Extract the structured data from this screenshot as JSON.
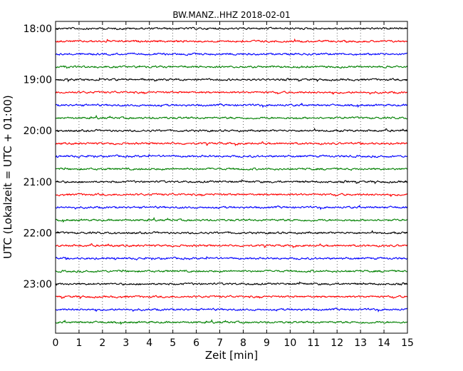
{
  "chart_data": {
    "type": "line",
    "title": "BW.MANZ..HHZ 2018-02-01",
    "xlabel": "Zeit  [min]",
    "ylabel": "UTC (Lokalzeit = UTC + 01:00)",
    "xlim": [
      0,
      15
    ],
    "x_ticks": [
      "0",
      "1",
      "2",
      "3",
      "4",
      "5",
      "6",
      "7",
      "8",
      "9",
      "10",
      "11",
      "12",
      "13",
      "14",
      "15"
    ],
    "y_ticks": [
      "18:00",
      "19:00",
      "20:00",
      "21:00",
      "22:00",
      "23:00"
    ],
    "grid": "vertical dotted",
    "trace_colors": [
      "#000000",
      "#ff0000",
      "#0000ff",
      "#008000"
    ],
    "traces": [
      {
        "start": "18:00",
        "color": "#000000"
      },
      {
        "start": "18:15",
        "color": "#ff0000"
      },
      {
        "start": "18:30",
        "color": "#0000ff"
      },
      {
        "start": "18:45",
        "color": "#008000"
      },
      {
        "start": "19:00",
        "color": "#000000"
      },
      {
        "start": "19:15",
        "color": "#ff0000"
      },
      {
        "start": "19:30",
        "color": "#0000ff"
      },
      {
        "start": "19:45",
        "color": "#008000"
      },
      {
        "start": "20:00",
        "color": "#000000"
      },
      {
        "start": "20:15",
        "color": "#ff0000"
      },
      {
        "start": "20:30",
        "color": "#0000ff"
      },
      {
        "start": "20:45",
        "color": "#008000"
      },
      {
        "start": "21:00",
        "color": "#000000"
      },
      {
        "start": "21:15",
        "color": "#ff0000"
      },
      {
        "start": "21:30",
        "color": "#0000ff"
      },
      {
        "start": "21:45",
        "color": "#008000"
      },
      {
        "start": "22:00",
        "color": "#000000"
      },
      {
        "start": "22:15",
        "color": "#ff0000"
      },
      {
        "start": "22:30",
        "color": "#0000ff"
      },
      {
        "start": "22:45",
        "color": "#008000"
      },
      {
        "start": "23:00",
        "color": "#000000"
      },
      {
        "start": "23:15",
        "color": "#ff0000"
      },
      {
        "start": "23:30",
        "color": "#0000ff"
      },
      {
        "start": "23:45",
        "color": "#008000"
      }
    ]
  }
}
